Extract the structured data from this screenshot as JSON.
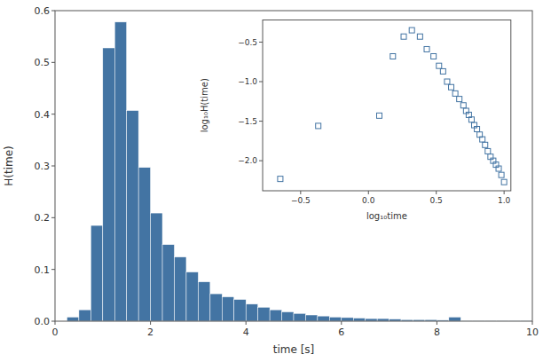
{
  "chart_data": [
    {
      "type": "histogram",
      "bins": [
        0.25,
        0.5,
        0.75,
        1.0,
        1.25,
        1.5,
        1.75,
        2.0,
        2.25,
        2.5,
        2.75,
        3.0,
        3.25,
        3.5,
        3.75,
        4.0,
        4.25,
        4.5,
        4.75,
        5.0,
        5.25,
        5.5,
        5.75,
        6.0,
        6.25,
        6.5,
        6.75,
        7.0,
        7.25,
        7.5,
        7.75,
        8.0,
        8.25,
        8.5,
        8.75,
        9.0,
        9.25,
        9.5,
        9.75,
        10.0
      ],
      "values": [
        0.008,
        0.022,
        0.185,
        0.528,
        0.578,
        0.407,
        0.297,
        0.209,
        0.148,
        0.124,
        0.095,
        0.076,
        0.053,
        0.047,
        0.042,
        0.033,
        0.027,
        0.022,
        0.018,
        0.015,
        0.012,
        0.01,
        0.008,
        0.007,
        0.006,
        0.005,
        0.005,
        0.004,
        0.003,
        0.003,
        0.003,
        0.002,
        0.008,
        0.001,
        0.001,
        0.001,
        0.001,
        0.001,
        0.001
      ],
      "color": "#4374a3",
      "xlabel": "time [s]",
      "ylabel": "H(time)",
      "xlim": [
        0,
        10
      ],
      "ylim": [
        0,
        0.6
      ],
      "xticks": [
        0,
        2,
        4,
        6,
        8,
        10
      ],
      "yticks": [
        {
          "value": 0.0,
          "label": "0.0"
        },
        0.1,
        0.2,
        0.3,
        0.4,
        0.5,
        0.6
      ],
      "grid": false
    },
    {
      "type": "scatter",
      "x": [
        -0.65,
        -0.37,
        0.08,
        0.18,
        0.26,
        0.32,
        0.38,
        0.43,
        0.48,
        0.52,
        0.55,
        0.58,
        0.61,
        0.64,
        0.67,
        0.7,
        0.72,
        0.74,
        0.76,
        0.78,
        0.8,
        0.82,
        0.84,
        0.86,
        0.88,
        0.9,
        0.92,
        0.94,
        0.96,
        0.98,
        1.0
      ],
      "values": [
        -2.23,
        -1.56,
        -1.43,
        -0.68,
        -0.43,
        -0.35,
        -0.43,
        -0.59,
        -0.68,
        -0.8,
        -0.87,
        -1.0,
        -1.07,
        -1.15,
        -1.22,
        -1.3,
        -1.37,
        -1.42,
        -1.48,
        -1.55,
        -1.6,
        -1.67,
        -1.73,
        -1.8,
        -1.88,
        -1.95,
        -2.0,
        -2.05,
        -2.1,
        -2.18,
        -2.27
      ],
      "color": "#4374a3",
      "marker": "square",
      "xlabel": "log₁₀time",
      "ylabel": "log₁₀H(time)",
      "xlim": [
        -0.78,
        1.05
      ],
      "ylim": [
        -2.38,
        -0.22
      ],
      "xticks": [
        {
          "value": -0.5,
          "label": "−0.5"
        },
        {
          "value": 0.0,
          "label": "0.0"
        },
        0.5,
        {
          "value": 1.0,
          "label": "1.0"
        }
      ],
      "yticks": [
        {
          "value": -0.5,
          "label": "−0.5"
        },
        {
          "value": -1.0,
          "label": "−1.0"
        },
        {
          "value": -1.5,
          "label": "−1.5"
        },
        {
          "value": -2.0,
          "label": "−2.0"
        }
      ],
      "grid": false
    }
  ]
}
